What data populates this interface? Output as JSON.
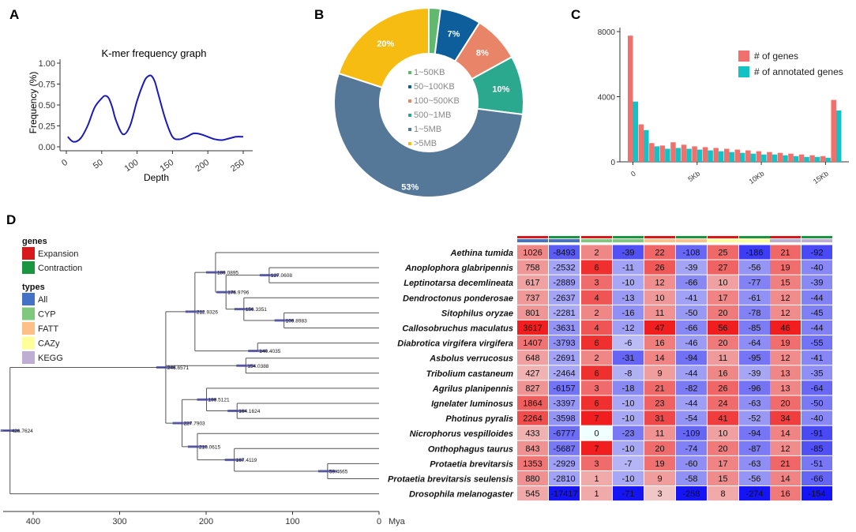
{
  "panel_labels": {
    "a": "A",
    "b": "B",
    "c": "C",
    "d": "D"
  },
  "chart_data": [
    {
      "id": "A",
      "type": "line",
      "title": "K-mer frequency graph",
      "xlabel": "Depth",
      "ylabel": "Frequency (%)",
      "xlim": [
        0,
        250
      ],
      "ylim": [
        0,
        1
      ],
      "xticks": [
        "0",
        "50",
        "100",
        "150",
        "200",
        "250"
      ],
      "yticks": [
        "0.00",
        "0.25",
        "0.50",
        "0.75",
        "1.00"
      ],
      "line_color": "#1a1ab8",
      "x": [
        2,
        10,
        20,
        30,
        40,
        50,
        55,
        60,
        65,
        70,
        80,
        90,
        100,
        110,
        115,
        120,
        125,
        130,
        140,
        150,
        160,
        170,
        180,
        190,
        200,
        210,
        220,
        230,
        240,
        250
      ],
      "y": [
        0.12,
        0.06,
        0.1,
        0.25,
        0.47,
        0.58,
        0.61,
        0.58,
        0.47,
        0.32,
        0.15,
        0.25,
        0.55,
        0.78,
        0.84,
        0.85,
        0.78,
        0.63,
        0.33,
        0.12,
        0.09,
        0.12,
        0.16,
        0.15,
        0.12,
        0.09,
        0.08,
        0.1,
        0.12,
        0.12
      ]
    },
    {
      "id": "B",
      "type": "pie",
      "legend": [
        "1~50KB",
        "50~100KB",
        "100~500KB",
        "500~1MB",
        "1~5MB",
        ">5MB"
      ],
      "values": [
        2,
        7,
        8,
        10,
        53,
        20
      ],
      "colors": [
        "#62b86e",
        "#0d5e9a",
        "#e88467",
        "#2aa98f",
        "#557899",
        "#f7bc11"
      ],
      "data_labels": [
        "",
        "7%",
        "8%",
        "10%",
        "53%",
        "20%"
      ]
    },
    {
      "id": "C",
      "type": "bar",
      "series": [
        {
          "name": "# of genes",
          "color": "#f1706b",
          "values": [
            7750,
            2300,
            1150,
            1000,
            1200,
            1050,
            950,
            900,
            850,
            800,
            750,
            700,
            650,
            600,
            550,
            500,
            450,
            400,
            350,
            3800
          ]
        },
        {
          "name": "# of annotated genes",
          "color": "#12c2c4",
          "values": [
            3700,
            1950,
            950,
            800,
            850,
            800,
            750,
            700,
            650,
            600,
            550,
            500,
            450,
            450,
            400,
            350,
            300,
            300,
            250,
            3150
          ]
        }
      ],
      "ylim": [
        0,
        8000
      ],
      "yticks": [
        "0",
        "4000",
        "8000"
      ],
      "xticks": [
        "0",
        "5Kb",
        "10Kb",
        "15Kb"
      ]
    },
    {
      "id": "D",
      "type": "heatmap",
      "legend_genes_title": "genes",
      "legend_genes": [
        {
          "label": "Expansion",
          "color": "#d7191c"
        },
        {
          "label": "Contraction",
          "color": "#1a9641"
        }
      ],
      "legend_types_title": "types",
      "legend_types": [
        {
          "label": "All",
          "color": "#4472c4"
        },
        {
          "label": "CYP",
          "color": "#7fc97f"
        },
        {
          "label": "FATT",
          "color": "#fdc086"
        },
        {
          "label": "CAZy",
          "color": "#ffff99"
        },
        {
          "label": "KEGG",
          "color": "#beaed4"
        }
      ],
      "group_bar_colors": [
        "#4472c4",
        "#7fc97f",
        "#fdc086",
        "#ffff99",
        "#beaed4"
      ],
      "axis_ticks": [
        "400",
        "300",
        "200",
        "100",
        "0"
      ],
      "axis_unit": "Mya",
      "node_labels": [
        "426.7624",
        "246.6571",
        "212.9326",
        "189.0895",
        "127.0608",
        "156.3351",
        "176.9796",
        "109.8983",
        "140.4035",
        "154.0388",
        "227.7903",
        "199.5121",
        "164.1624",
        "210.0615",
        "167.4119",
        "59.4665"
      ],
      "species": [
        "Aethina tumida",
        "Anoplophora glabripennis",
        "Leptinotarsa decemlineata",
        "Dendroctonus ponderosae",
        "Sitophilus oryzae",
        "Callosobruchus maculatus",
        "Diabrotica virgifera virgifera",
        "Asbolus verrucosus",
        "Tribolium castaneum",
        "Agrilus planipennis",
        "Ignelater luminosus",
        "Photinus pyralis",
        "Nicrophorus vespilloides",
        "Onthophagus taurus",
        "Protaetia brevitarsis",
        "Protaetia brevitarsis seulensis",
        "Drosophila melanogaster"
      ],
      "values": [
        [
          1026,
          -8493,
          2,
          -39,
          22,
          -108,
          25,
          -186,
          21,
          -92
        ],
        [
          758,
          -2532,
          6,
          -11,
          26,
          -39,
          27,
          -56,
          19,
          -40
        ],
        [
          617,
          -2889,
          3,
          -10,
          12,
          -66,
          10,
          -77,
          15,
          -39
        ],
        [
          737,
          -2637,
          4,
          -13,
          10,
          -41,
          17,
          -61,
          12,
          -44
        ],
        [
          801,
          -2281,
          2,
          -16,
          11,
          -50,
          20,
          -78,
          12,
          -45
        ],
        [
          3617,
          -3631,
          4,
          -12,
          47,
          -66,
          56,
          -85,
          46,
          -44
        ],
        [
          1407,
          -3793,
          6,
          -6,
          16,
          -46,
          20,
          -64,
          19,
          -55
        ],
        [
          648,
          -2691,
          2,
          -31,
          14,
          -94,
          11,
          -95,
          12,
          -41
        ],
        [
          427,
          -2464,
          6,
          -8,
          9,
          -44,
          16,
          -39,
          13,
          -35
        ],
        [
          827,
          -6157,
          3,
          -18,
          21,
          -82,
          26,
          -96,
          13,
          -64
        ],
        [
          1864,
          -3397,
          6,
          -10,
          23,
          -44,
          24,
          -63,
          20,
          -50
        ],
        [
          2264,
          -3598,
          7,
          -10,
          31,
          -54,
          41,
          -52,
          34,
          -40
        ],
        [
          433,
          -6777,
          0,
          -23,
          11,
          -109,
          10,
          -94,
          14,
          -91
        ],
        [
          843,
          -5687,
          7,
          -10,
          20,
          -74,
          20,
          -87,
          12,
          -85
        ],
        [
          1353,
          -2929,
          3,
          -7,
          19,
          -60,
          17,
          -63,
          21,
          -51
        ],
        [
          880,
          -2810,
          1,
          -10,
          9,
          -58,
          15,
          -56,
          14,
          -66
        ],
        [
          545,
          -17417,
          1,
          -71,
          3,
          -258,
          8,
          -274,
          16,
          -154
        ]
      ]
    }
  ]
}
